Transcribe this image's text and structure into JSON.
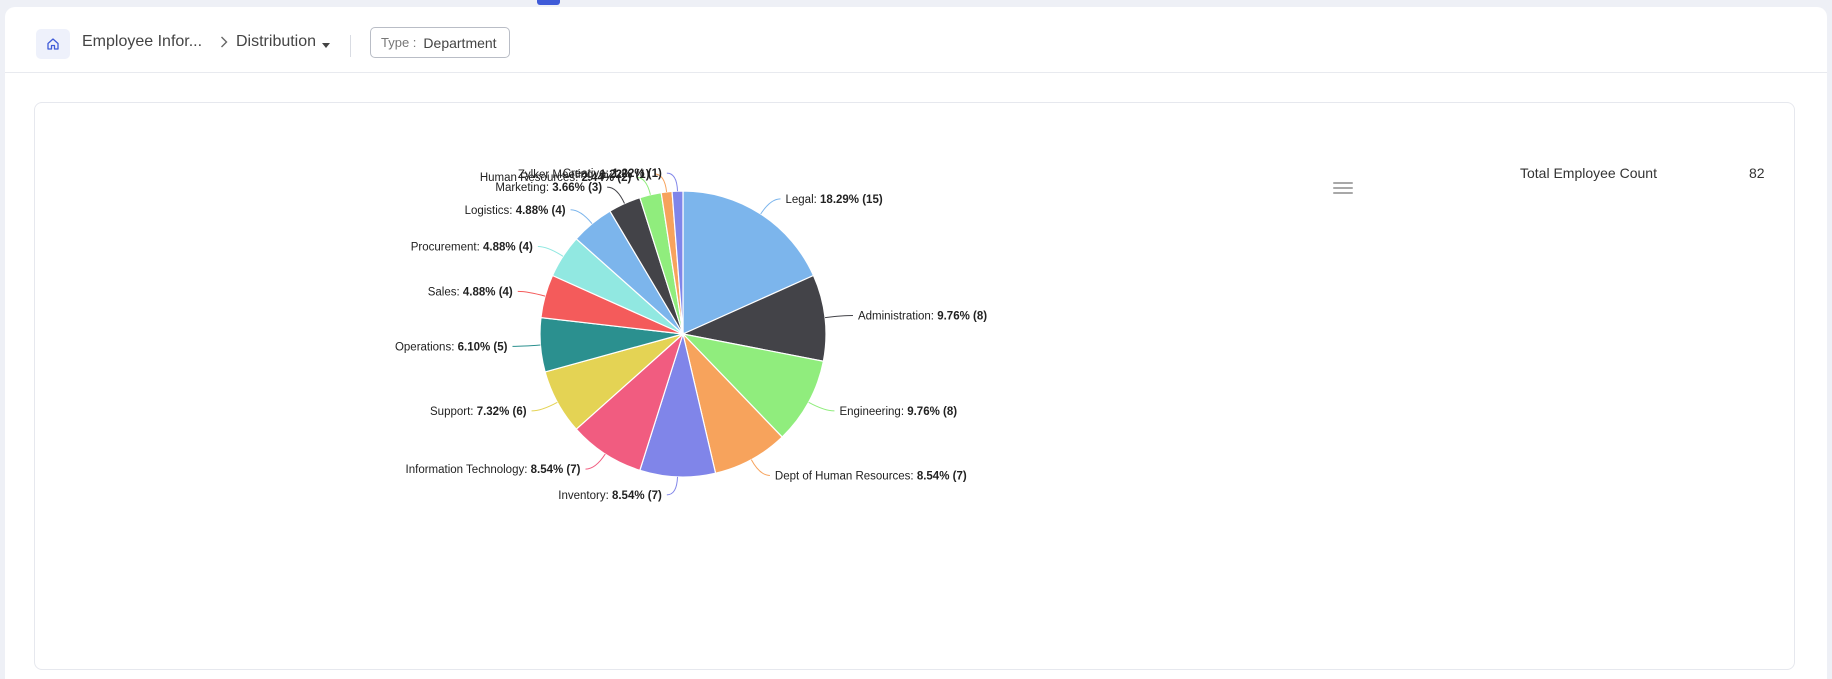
{
  "breadcrumb": {
    "module": "Employee Infor...",
    "view": "Distribution"
  },
  "filter": {
    "type_label": "Type :",
    "type_value": "Department"
  },
  "summary": {
    "label": "Total Employee Count",
    "value": "82"
  },
  "chart_data": {
    "type": "pie",
    "total": 82,
    "slices": [
      {
        "label": "Legal",
        "value": 15,
        "percent": "18.29%",
        "color": "#7cb5ec"
      },
      {
        "label": "Administration",
        "value": 8,
        "percent": "9.76%",
        "color": "#434348"
      },
      {
        "label": "Engineering",
        "value": 8,
        "percent": "9.76%",
        "color": "#90ed7d"
      },
      {
        "label": "Dept of Human Resources",
        "value": 7,
        "percent": "8.54%",
        "color": "#f7a35c"
      },
      {
        "label": "Inventory",
        "value": 7,
        "percent": "8.54%",
        "color": "#8085e9"
      },
      {
        "label": "Information Technology",
        "value": 7,
        "percent": "8.54%",
        "color": "#f15c80"
      },
      {
        "label": "Support",
        "value": 6,
        "percent": "7.32%",
        "color": "#e4d354"
      },
      {
        "label": "Operations",
        "value": 5,
        "percent": "6.10%",
        "color": "#2b908f"
      },
      {
        "label": "Sales",
        "value": 4,
        "percent": "4.88%",
        "color": "#f45b5b"
      },
      {
        "label": "Procurement",
        "value": 4,
        "percent": "4.88%",
        "color": "#91e8e1"
      },
      {
        "label": "Logistics",
        "value": 4,
        "percent": "4.88%",
        "color": "#7cb5ec"
      },
      {
        "label": "Marketing",
        "value": 3,
        "percent": "3.66%",
        "color": "#434348"
      },
      {
        "label": "Human Resources",
        "value": 2,
        "percent": "2.44%",
        "color": "#90ed7d"
      },
      {
        "label": "Zylker Meeting",
        "value": 1,
        "percent": "1.22%",
        "color": "#f7a35c"
      },
      {
        "label": "Creative",
        "value": 1,
        "percent": "1.22%",
        "color": "#8085e9"
      }
    ]
  }
}
